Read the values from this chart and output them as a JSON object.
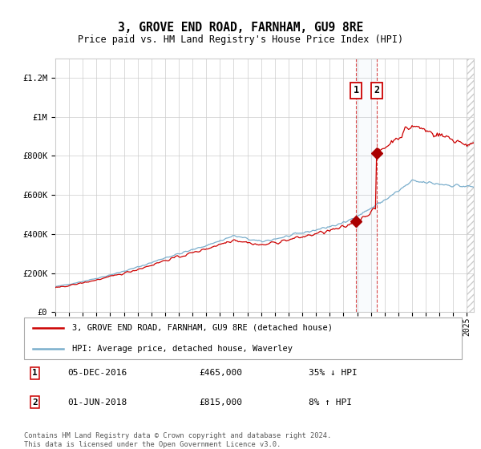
{
  "title": "3, GROVE END ROAD, FARNHAM, GU9 8RE",
  "subtitle": "Price paid vs. HM Land Registry's House Price Index (HPI)",
  "legend_line1": "3, GROVE END ROAD, FARNHAM, GU9 8RE (detached house)",
  "legend_line2": "HPI: Average price, detached house, Waverley",
  "annotation1": {
    "label": "1",
    "date": "05-DEC-2016",
    "price": "£465,000",
    "hpi_rel": "35% ↓ HPI",
    "year": 2016.92
  },
  "annotation2": {
    "label": "2",
    "date": "01-JUN-2018",
    "price": "£815,000",
    "hpi_rel": "8% ↑ HPI",
    "year": 2018.42
  },
  "footer": "Contains HM Land Registry data © Crown copyright and database right 2024.\nThis data is licensed under the Open Government Licence v3.0.",
  "red_color": "#cc0000",
  "blue_color": "#7aaecc",
  "marker_color": "#aa0000",
  "ylim": [
    0,
    1300000
  ],
  "xlim_start": 1995.0,
  "xlim_end": 2025.5,
  "yticks": [
    0,
    200000,
    400000,
    600000,
    800000,
    1000000,
    1200000
  ],
  "ylabels": [
    "£0",
    "£200K",
    "£400K",
    "£600K",
    "£800K",
    "£1M",
    "£1.2M"
  ]
}
